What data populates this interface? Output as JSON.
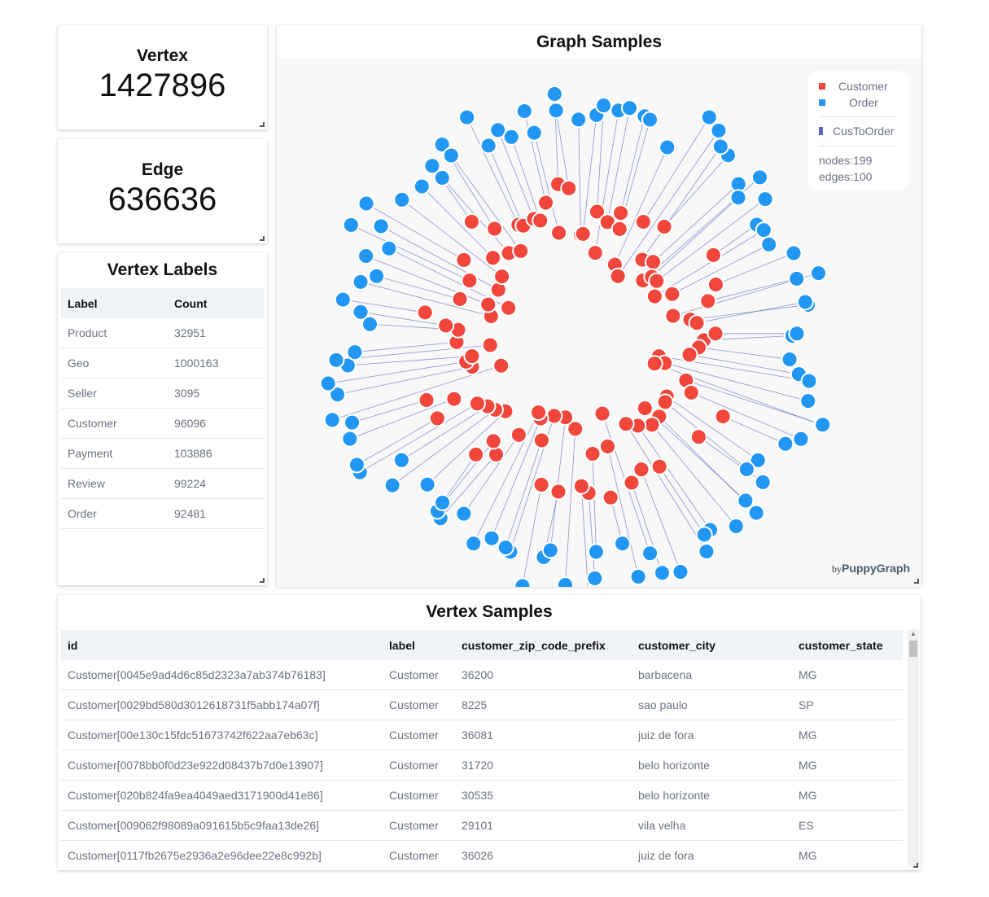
{
  "stats": {
    "vertex": {
      "title": "Vertex",
      "value": "1427896"
    },
    "edge": {
      "title": "Edge",
      "value": "636636"
    }
  },
  "vertex_labels": {
    "title": "Vertex Labels",
    "columns": [
      "Label",
      "Count"
    ],
    "rows": [
      [
        "Product",
        "32951"
      ],
      [
        "Geo",
        "1000163"
      ],
      [
        "Seller",
        "3095"
      ],
      [
        "Customer",
        "96096"
      ],
      [
        "Payment",
        "103886"
      ],
      [
        "Review",
        "99224"
      ],
      [
        "Order",
        "92481"
      ]
    ]
  },
  "graph": {
    "title": "Graph Samples",
    "legend": {
      "nodes": [
        {
          "label": "Customer",
          "color": "#f0463b"
        },
        {
          "label": "Order",
          "color": "#2196f3"
        }
      ],
      "edges": [
        {
          "label": "CusToOrder",
          "color": "#5b6bbf"
        }
      ],
      "nodes_count": "nodes:199",
      "edges_count": "edges:100"
    },
    "brand_by": "by",
    "brand_name": "PuppyGraph"
  },
  "vertex_samples": {
    "title": "Vertex Samples",
    "columns": [
      "id",
      "label",
      "customer_zip_code_prefix",
      "customer_city",
      "customer_state"
    ],
    "rows": [
      [
        "Customer[0045e9ad4d6c85d2323a7ab374b76183]",
        "Customer",
        "36200",
        "barbacena",
        "MG"
      ],
      [
        "Customer[0029bd580d3012618731f5abb174a07f]",
        "Customer",
        "8225",
        "sao paulo",
        "SP"
      ],
      [
        "Customer[00e130c15fdc51673742f622aa7eb63c]",
        "Customer",
        "36081",
        "juiz de fora",
        "MG"
      ],
      [
        "Customer[0078bb0f0d23e922d08437b7d0e13907]",
        "Customer",
        "31720",
        "belo horizonte",
        "MG"
      ],
      [
        "Customer[020b824fa9ea4049aed3171900d41e86]",
        "Customer",
        "30535",
        "belo horizonte",
        "MG"
      ],
      [
        "Customer[009062f98089a091615b5c9faa13de26]",
        "Customer",
        "29101",
        "vila velha",
        "ES"
      ],
      [
        "Customer[0117fb2675e2936a2e96dee22e8c992b]",
        "Customer",
        "36026",
        "juiz de fora",
        "MG"
      ]
    ]
  }
}
